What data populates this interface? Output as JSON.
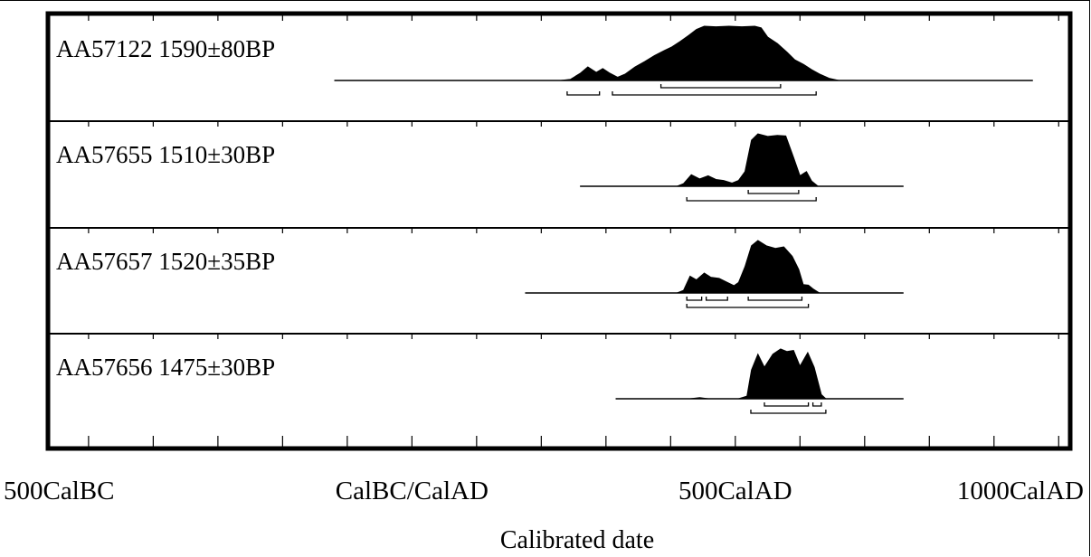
{
  "chart_data": {
    "type": "area",
    "title": "",
    "xlabel": "Calibrated date",
    "ylabel": "",
    "x_ticks": [
      {
        "value": -500,
        "label": "500CalBC"
      },
      {
        "value": 0,
        "label": "CalBC/CalAD"
      },
      {
        "value": 500,
        "label": "500CalAD"
      },
      {
        "value": 1000,
        "label": "1000CalAD"
      }
    ],
    "xlim": [
      -560,
      1015
    ],
    "minor_tick_step": 100,
    "grid": false,
    "legend": "none",
    "series": [
      {
        "name": "AA57122 1590±80BP",
        "id": "AA57122",
        "age": "1590±80BP",
        "range": [
          -120,
          960
        ],
        "profile": [
          [
            -120,
            0
          ],
          [
            230,
            0
          ],
          [
            245,
            0.02
          ],
          [
            260,
            0.13
          ],
          [
            272,
            0.25
          ],
          [
            285,
            0.15
          ],
          [
            295,
            0.22
          ],
          [
            305,
            0.14
          ],
          [
            318,
            0.06
          ],
          [
            330,
            0.12
          ],
          [
            345,
            0.25
          ],
          [
            360,
            0.35
          ],
          [
            375,
            0.46
          ],
          [
            390,
            0.55
          ],
          [
            402,
            0.62
          ],
          [
            415,
            0.72
          ],
          [
            428,
            0.83
          ],
          [
            440,
            0.94
          ],
          [
            452,
            1.0
          ],
          [
            470,
            0.99
          ],
          [
            490,
            1.0
          ],
          [
            510,
            0.99
          ],
          [
            530,
            1.0
          ],
          [
            540,
            0.97
          ],
          [
            550,
            0.8
          ],
          [
            565,
            0.68
          ],
          [
            580,
            0.52
          ],
          [
            592,
            0.38
          ],
          [
            605,
            0.3
          ],
          [
            618,
            0.2
          ],
          [
            630,
            0.12
          ],
          [
            645,
            0.04
          ],
          [
            660,
            0
          ],
          [
            960,
            0
          ]
        ],
        "ranges_68": [
          [
            385,
            570
          ]
        ],
        "ranges_95": [
          [
            240,
            290
          ],
          [
            310,
            625
          ]
        ]
      },
      {
        "name": "AA57655 1510±30BP",
        "id": "AA57655",
        "age": "1510±30BP",
        "range": [
          260,
          760
        ],
        "profile": [
          [
            260,
            0
          ],
          [
            410,
            0
          ],
          [
            420,
            0.05
          ],
          [
            432,
            0.22
          ],
          [
            445,
            0.14
          ],
          [
            458,
            0.2
          ],
          [
            470,
            0.13
          ],
          [
            482,
            0.11
          ],
          [
            495,
            0.06
          ],
          [
            505,
            0.11
          ],
          [
            515,
            0.28
          ],
          [
            525,
            0.88
          ],
          [
            535,
            1.0
          ],
          [
            550,
            0.95
          ],
          [
            565,
            0.97
          ],
          [
            578,
            0.96
          ],
          [
            590,
            0.55
          ],
          [
            600,
            0.2
          ],
          [
            610,
            0.28
          ],
          [
            618,
            0.1
          ],
          [
            628,
            0
          ],
          [
            760,
            0
          ]
        ],
        "ranges_68": [
          [
            520,
            598
          ]
        ],
        "ranges_95": [
          [
            425,
            625
          ]
        ]
      },
      {
        "name": "AA57657 1520±35BP",
        "id": "AA57657",
        "age": "1520±35BP",
        "range": [
          175,
          760
        ],
        "profile": [
          [
            175,
            0
          ],
          [
            410,
            0
          ],
          [
            420,
            0.05
          ],
          [
            430,
            0.32
          ],
          [
            440,
            0.25
          ],
          [
            452,
            0.38
          ],
          [
            462,
            0.3
          ],
          [
            475,
            0.28
          ],
          [
            488,
            0.2
          ],
          [
            498,
            0.14
          ],
          [
            505,
            0.2
          ],
          [
            515,
            0.5
          ],
          [
            525,
            0.9
          ],
          [
            535,
            1.0
          ],
          [
            548,
            0.9
          ],
          [
            562,
            0.85
          ],
          [
            575,
            0.88
          ],
          [
            588,
            0.7
          ],
          [
            598,
            0.45
          ],
          [
            605,
            0.16
          ],
          [
            613,
            0.15
          ],
          [
            620,
            0.08
          ],
          [
            630,
            0
          ],
          [
            760,
            0
          ]
        ],
        "ranges_68": [
          [
            425,
            448
          ],
          [
            455,
            488
          ],
          [
            520,
            603
          ]
        ],
        "ranges_95": [
          [
            425,
            613
          ]
        ]
      },
      {
        "name": "AA57656 1475±30BP",
        "id": "AA57656",
        "age": "1475±30BP",
        "range": [
          315,
          760
        ],
        "profile": [
          [
            315,
            0
          ],
          [
            430,
            0.0
          ],
          [
            445,
            0.02
          ],
          [
            458,
            0
          ],
          [
            505,
            0
          ],
          [
            518,
            0.05
          ],
          [
            525,
            0.55
          ],
          [
            535,
            0.85
          ],
          [
            545,
            0.6
          ],
          [
            558,
            0.85
          ],
          [
            570,
            0.95
          ],
          [
            580,
            0.9
          ],
          [
            590,
            0.92
          ],
          [
            600,
            0.62
          ],
          [
            612,
            0.88
          ],
          [
            622,
            0.6
          ],
          [
            633,
            0.08
          ],
          [
            640,
            0
          ],
          [
            760,
            0
          ]
        ],
        "ranges_68": [
          [
            545,
            613
          ],
          [
            620,
            633
          ]
        ],
        "ranges_95": [
          [
            524,
            640
          ]
        ]
      }
    ]
  }
}
